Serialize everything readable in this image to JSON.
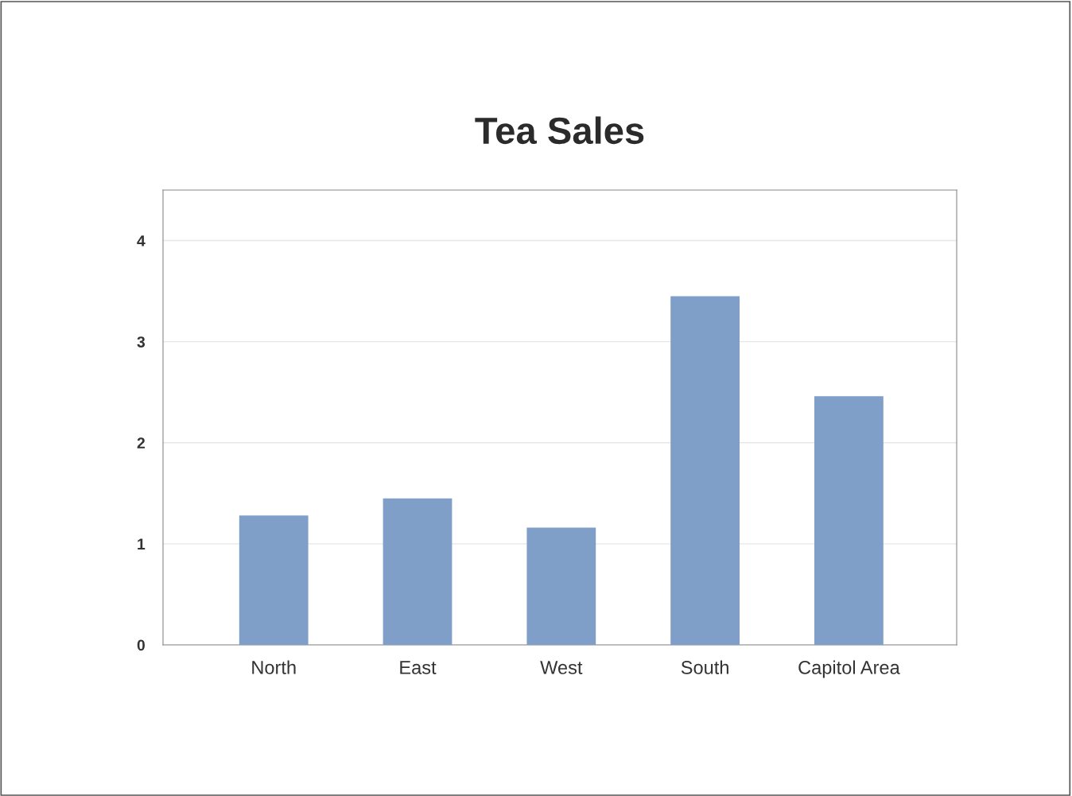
{
  "chart_data": {
    "type": "bar",
    "title": "Tea Sales",
    "categories": [
      "North",
      "East",
      "West",
      "South",
      "Capitol Area"
    ],
    "values": [
      1.28,
      1.45,
      1.16,
      3.45,
      2.46
    ],
    "color": "#7f9fc8",
    "ylim": [
      0,
      4.5
    ],
    "yticks": [
      0,
      1,
      2,
      3,
      4
    ],
    "grid": "y",
    "legend": false
  }
}
